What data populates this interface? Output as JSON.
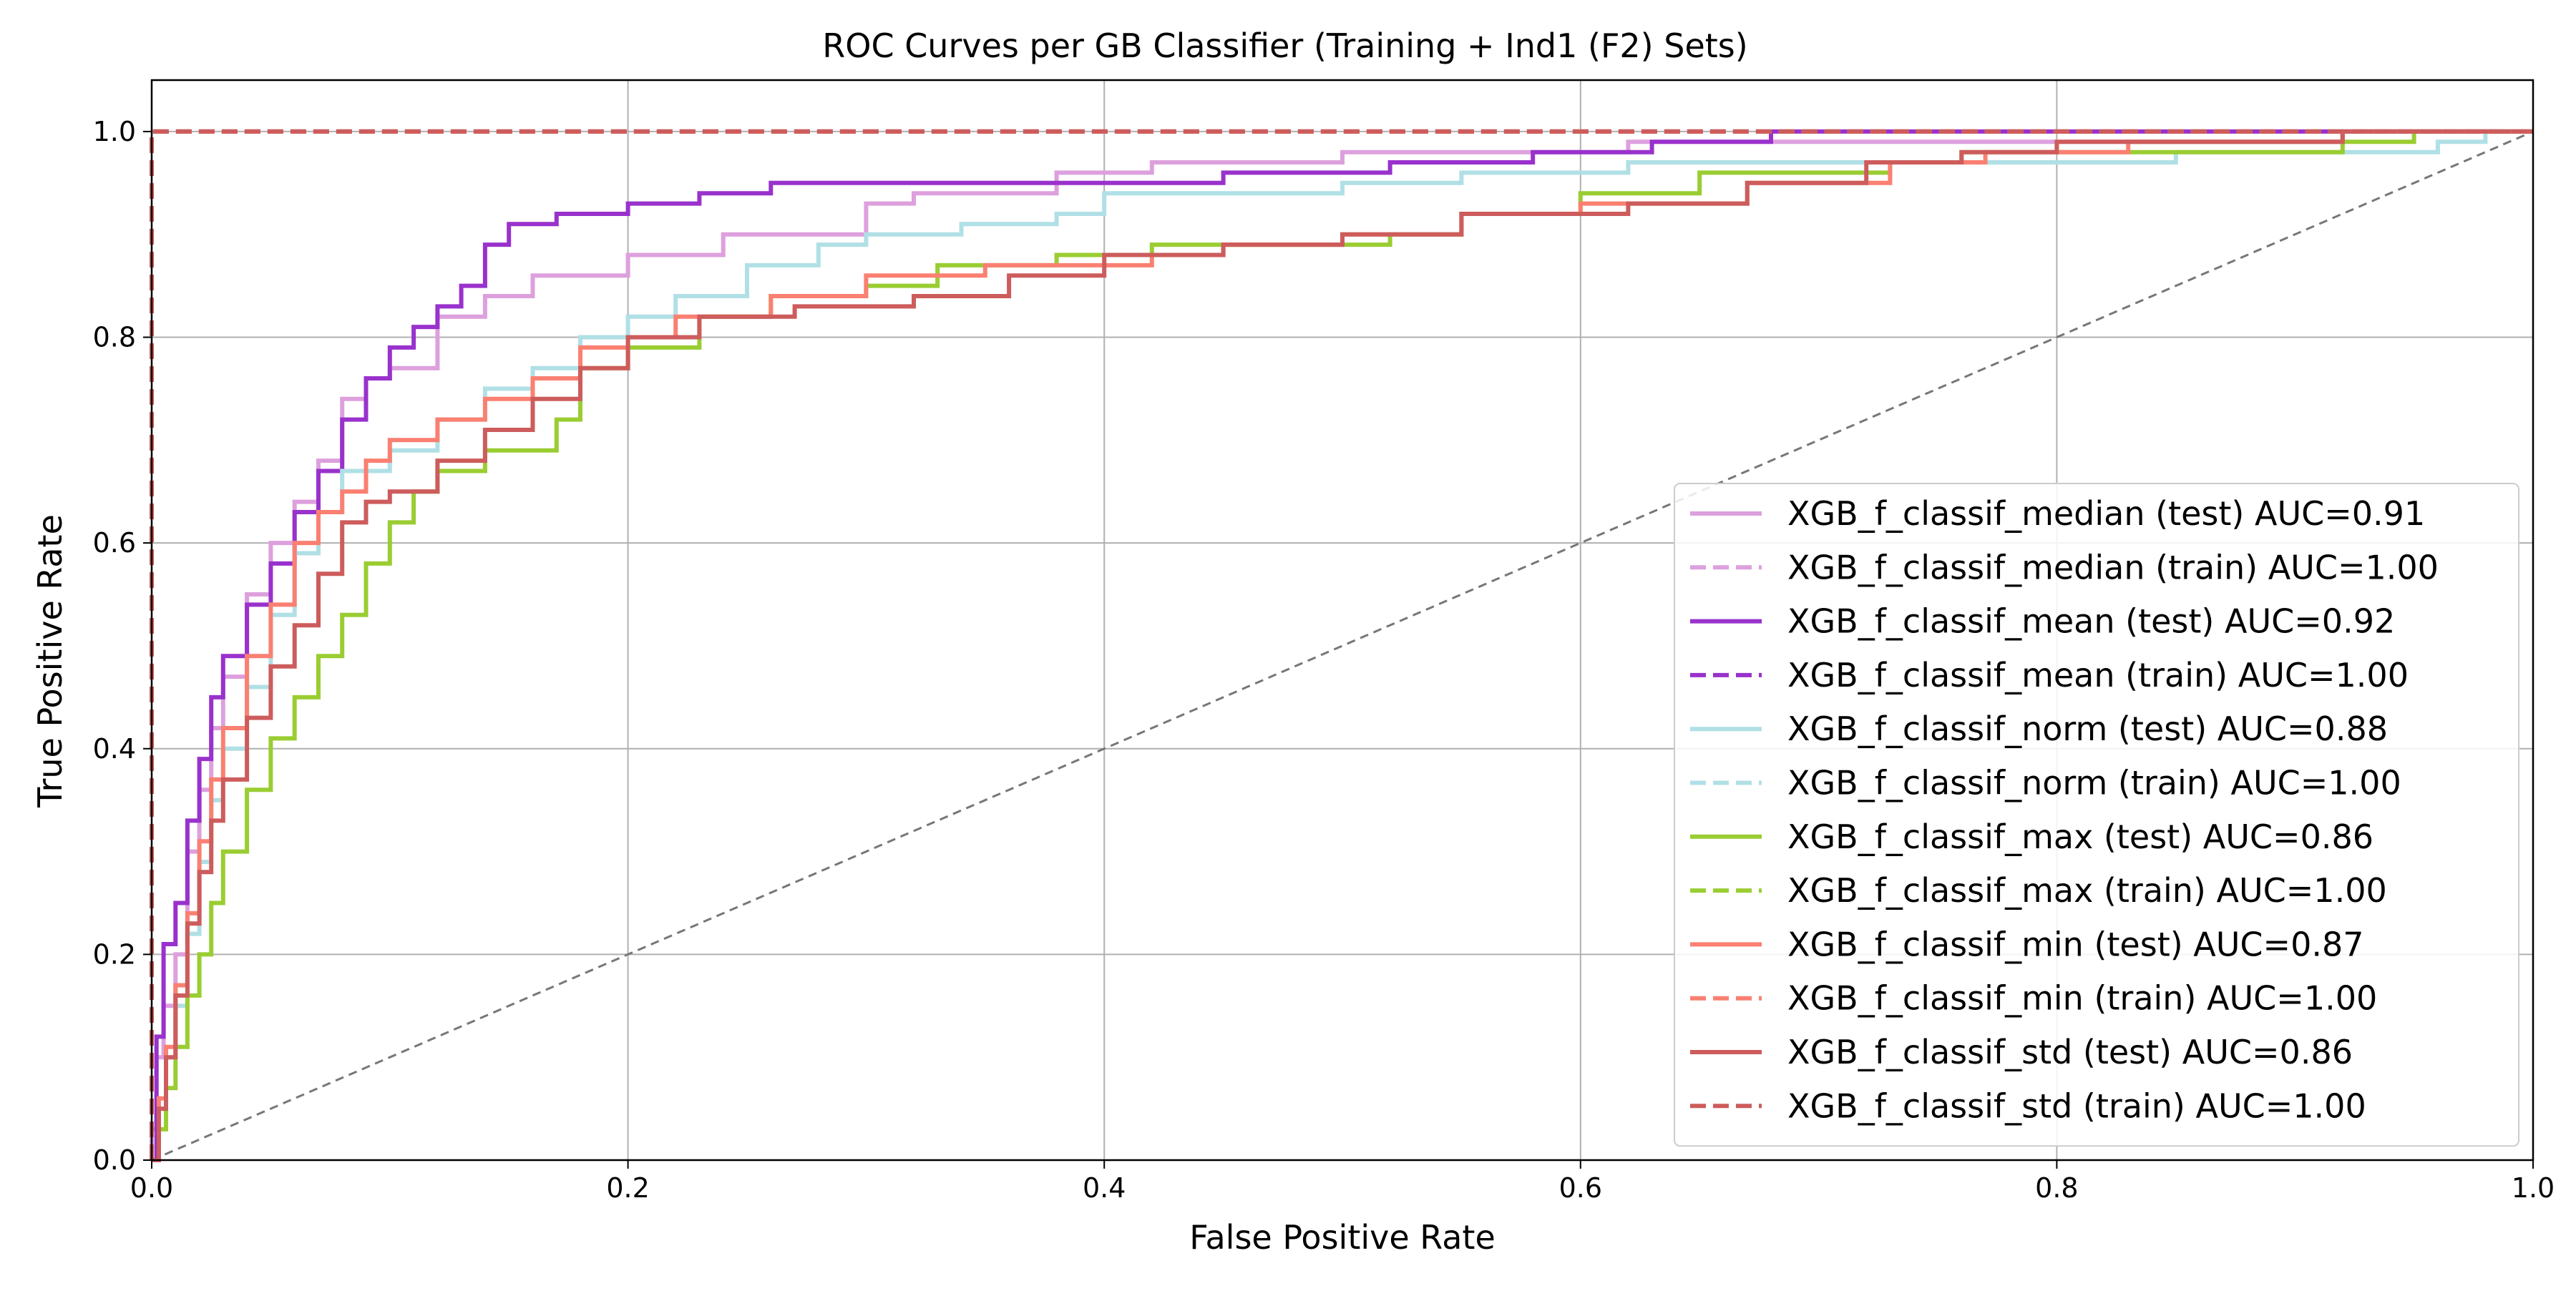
{
  "chart_data": {
    "type": "line",
    "title": "ROC Curves per GB Classifier (Training + Ind1 (F2) Sets)",
    "xlabel": "False Positive Rate",
    "ylabel": "True Positive Rate",
    "xlim": [
      0.0,
      1.0
    ],
    "ylim": [
      0.0,
      1.05
    ],
    "xticks": [
      0.0,
      0.2,
      0.4,
      0.6,
      0.8,
      1.0
    ],
    "yticks": [
      0.0,
      0.2,
      0.4,
      0.6,
      0.8,
      1.0
    ],
    "xtick_labels": [
      "0.0",
      "0.2",
      "0.4",
      "0.6",
      "0.8",
      "1.0"
    ],
    "ytick_labels": [
      "0.0",
      "0.2",
      "0.4",
      "0.6",
      "0.8",
      "1.0"
    ],
    "grid": true,
    "legend_position": "center-right",
    "series": [
      {
        "name": "XGB_f_classif_median (test) AUC=0.91",
        "color": "#dda0dd",
        "style": "solid",
        "points": [
          [
            0,
            0
          ],
          [
            0,
            0.03
          ],
          [
            0.002,
            0.1
          ],
          [
            0.005,
            0.15
          ],
          [
            0.01,
            0.2
          ],
          [
            0.015,
            0.3
          ],
          [
            0.02,
            0.36
          ],
          [
            0.025,
            0.42
          ],
          [
            0.03,
            0.47
          ],
          [
            0.04,
            0.55
          ],
          [
            0.05,
            0.6
          ],
          [
            0.06,
            0.64
          ],
          [
            0.07,
            0.68
          ],
          [
            0.08,
            0.74
          ],
          [
            0.09,
            0.76
          ],
          [
            0.1,
            0.77
          ],
          [
            0.12,
            0.82
          ],
          [
            0.14,
            0.84
          ],
          [
            0.16,
            0.86
          ],
          [
            0.2,
            0.88
          ],
          [
            0.24,
            0.9
          ],
          [
            0.3,
            0.93
          ],
          [
            0.32,
            0.94
          ],
          [
            0.38,
            0.96
          ],
          [
            0.42,
            0.97
          ],
          [
            0.5,
            0.98
          ],
          [
            0.62,
            0.99
          ],
          [
            0.75,
            0.99
          ],
          [
            0.92,
            1.0
          ],
          [
            1.0,
            1.0
          ]
        ]
      },
      {
        "name": "XGB_f_classif_median (train) AUC=1.00",
        "color": "#dda0dd",
        "style": "dashed",
        "points": [
          [
            0,
            0
          ],
          [
            0,
            1.0
          ],
          [
            1.0,
            1.0
          ]
        ]
      },
      {
        "name": "XGB_f_classif_mean (test) AUC=0.92",
        "color": "#9932cc",
        "style": "solid",
        "points": [
          [
            0,
            0
          ],
          [
            0.002,
            0.12
          ],
          [
            0.005,
            0.21
          ],
          [
            0.01,
            0.25
          ],
          [
            0.015,
            0.33
          ],
          [
            0.02,
            0.39
          ],
          [
            0.025,
            0.45
          ],
          [
            0.03,
            0.49
          ],
          [
            0.04,
            0.54
          ],
          [
            0.05,
            0.58
          ],
          [
            0.06,
            0.63
          ],
          [
            0.07,
            0.67
          ],
          [
            0.08,
            0.72
          ],
          [
            0.09,
            0.76
          ],
          [
            0.1,
            0.79
          ],
          [
            0.11,
            0.81
          ],
          [
            0.12,
            0.83
          ],
          [
            0.13,
            0.85
          ],
          [
            0.14,
            0.89
          ],
          [
            0.15,
            0.91
          ],
          [
            0.17,
            0.92
          ],
          [
            0.2,
            0.93
          ],
          [
            0.23,
            0.94
          ],
          [
            0.26,
            0.95
          ],
          [
            0.4,
            0.95
          ],
          [
            0.45,
            0.96
          ],
          [
            0.52,
            0.97
          ],
          [
            0.58,
            0.98
          ],
          [
            0.63,
            0.99
          ],
          [
            0.68,
            1.0
          ],
          [
            1.0,
            1.0
          ]
        ]
      },
      {
        "name": "XGB_f_classif_mean (train) AUC=1.00",
        "color": "#9932cc",
        "style": "dashed",
        "points": [
          [
            0,
            0
          ],
          [
            0,
            1.0
          ],
          [
            1.0,
            1.0
          ]
        ]
      },
      {
        "name": "XGB_f_classif_norm (test) AUC=0.88",
        "color": "#b0e0e6",
        "style": "solid",
        "points": [
          [
            0,
            0
          ],
          [
            0.003,
            0.05
          ],
          [
            0.006,
            0.1
          ],
          [
            0.01,
            0.15
          ],
          [
            0.015,
            0.22
          ],
          [
            0.02,
            0.29
          ],
          [
            0.025,
            0.35
          ],
          [
            0.03,
            0.4
          ],
          [
            0.04,
            0.46
          ],
          [
            0.05,
            0.53
          ],
          [
            0.06,
            0.59
          ],
          [
            0.07,
            0.63
          ],
          [
            0.08,
            0.67
          ],
          [
            0.1,
            0.69
          ],
          [
            0.12,
            0.72
          ],
          [
            0.14,
            0.75
          ],
          [
            0.16,
            0.77
          ],
          [
            0.18,
            0.8
          ],
          [
            0.2,
            0.82
          ],
          [
            0.22,
            0.84
          ],
          [
            0.25,
            0.87
          ],
          [
            0.28,
            0.89
          ],
          [
            0.3,
            0.9
          ],
          [
            0.34,
            0.91
          ],
          [
            0.38,
            0.92
          ],
          [
            0.4,
            0.94
          ],
          [
            0.5,
            0.95
          ],
          [
            0.55,
            0.96
          ],
          [
            0.62,
            0.97
          ],
          [
            0.85,
            0.98
          ],
          [
            0.96,
            0.99
          ],
          [
            0.98,
            1.0
          ],
          [
            1.0,
            1.0
          ]
        ]
      },
      {
        "name": "XGB_f_classif_norm (train) AUC=1.00",
        "color": "#b0e0e6",
        "style": "dashed",
        "points": [
          [
            0,
            0
          ],
          [
            0,
            1.0
          ],
          [
            1.0,
            1.0
          ]
        ]
      },
      {
        "name": "XGB_f_classif_max (test) AUC=0.86",
        "color": "#9acd32",
        "style": "solid",
        "points": [
          [
            0,
            0
          ],
          [
            0.003,
            0.03
          ],
          [
            0.006,
            0.07
          ],
          [
            0.01,
            0.11
          ],
          [
            0.015,
            0.16
          ],
          [
            0.02,
            0.2
          ],
          [
            0.025,
            0.25
          ],
          [
            0.03,
            0.3
          ],
          [
            0.04,
            0.36
          ],
          [
            0.05,
            0.41
          ],
          [
            0.06,
            0.45
          ],
          [
            0.07,
            0.49
          ],
          [
            0.08,
            0.53
          ],
          [
            0.09,
            0.58
          ],
          [
            0.1,
            0.62
          ],
          [
            0.11,
            0.65
          ],
          [
            0.12,
            0.67
          ],
          [
            0.14,
            0.69
          ],
          [
            0.17,
            0.72
          ],
          [
            0.18,
            0.77
          ],
          [
            0.2,
            0.79
          ],
          [
            0.23,
            0.82
          ],
          [
            0.26,
            0.84
          ],
          [
            0.3,
            0.85
          ],
          [
            0.33,
            0.87
          ],
          [
            0.38,
            0.88
          ],
          [
            0.42,
            0.89
          ],
          [
            0.52,
            0.9
          ],
          [
            0.55,
            0.92
          ],
          [
            0.6,
            0.94
          ],
          [
            0.65,
            0.96
          ],
          [
            0.73,
            0.97
          ],
          [
            0.76,
            0.98
          ],
          [
            0.92,
            0.99
          ],
          [
            0.95,
            1.0
          ],
          [
            1.0,
            1.0
          ]
        ]
      },
      {
        "name": "XGB_f_classif_max (train) AUC=1.00",
        "color": "#9acd32",
        "style": "dashed",
        "points": [
          [
            0,
            0
          ],
          [
            0,
            1.0
          ],
          [
            1.0,
            1.0
          ]
        ]
      },
      {
        "name": "XGB_f_classif_min (test) AUC=0.87",
        "color": "#fa8072",
        "style": "solid",
        "points": [
          [
            0,
            0
          ],
          [
            0.003,
            0.06
          ],
          [
            0.006,
            0.11
          ],
          [
            0.01,
            0.17
          ],
          [
            0.015,
            0.24
          ],
          [
            0.02,
            0.31
          ],
          [
            0.025,
            0.37
          ],
          [
            0.03,
            0.42
          ],
          [
            0.04,
            0.49
          ],
          [
            0.05,
            0.54
          ],
          [
            0.06,
            0.6
          ],
          [
            0.07,
            0.63
          ],
          [
            0.08,
            0.65
          ],
          [
            0.09,
            0.68
          ],
          [
            0.1,
            0.7
          ],
          [
            0.12,
            0.72
          ],
          [
            0.14,
            0.74
          ],
          [
            0.16,
            0.76
          ],
          [
            0.18,
            0.79
          ],
          [
            0.2,
            0.8
          ],
          [
            0.22,
            0.82
          ],
          [
            0.26,
            0.84
          ],
          [
            0.3,
            0.86
          ],
          [
            0.35,
            0.87
          ],
          [
            0.42,
            0.88
          ],
          [
            0.45,
            0.89
          ],
          [
            0.5,
            0.9
          ],
          [
            0.55,
            0.92
          ],
          [
            0.6,
            0.93
          ],
          [
            0.67,
            0.95
          ],
          [
            0.73,
            0.97
          ],
          [
            0.77,
            0.98
          ],
          [
            0.83,
            0.99
          ],
          [
            0.92,
            1.0
          ],
          [
            1.0,
            1.0
          ]
        ]
      },
      {
        "name": "XGB_f_classif_min (train) AUC=1.00",
        "color": "#fa8072",
        "style": "dashed",
        "points": [
          [
            0,
            0
          ],
          [
            0,
            1.0
          ],
          [
            1.0,
            1.0
          ]
        ]
      },
      {
        "name": "XGB_f_classif_std (test) AUC=0.86",
        "color": "#cd5c5c",
        "style": "solid",
        "points": [
          [
            0,
            0
          ],
          [
            0.003,
            0.05
          ],
          [
            0.006,
            0.1
          ],
          [
            0.01,
            0.16
          ],
          [
            0.015,
            0.23
          ],
          [
            0.02,
            0.28
          ],
          [
            0.025,
            0.33
          ],
          [
            0.03,
            0.37
          ],
          [
            0.04,
            0.43
          ],
          [
            0.05,
            0.48
          ],
          [
            0.06,
            0.52
          ],
          [
            0.07,
            0.57
          ],
          [
            0.08,
            0.62
          ],
          [
            0.09,
            0.64
          ],
          [
            0.1,
            0.65
          ],
          [
            0.12,
            0.68
          ],
          [
            0.14,
            0.71
          ],
          [
            0.16,
            0.74
          ],
          [
            0.18,
            0.77
          ],
          [
            0.2,
            0.8
          ],
          [
            0.23,
            0.82
          ],
          [
            0.27,
            0.83
          ],
          [
            0.32,
            0.84
          ],
          [
            0.36,
            0.86
          ],
          [
            0.4,
            0.88
          ],
          [
            0.45,
            0.89
          ],
          [
            0.5,
            0.9
          ],
          [
            0.55,
            0.92
          ],
          [
            0.62,
            0.93
          ],
          [
            0.67,
            0.95
          ],
          [
            0.72,
            0.97
          ],
          [
            0.76,
            0.98
          ],
          [
            0.8,
            0.99
          ],
          [
            0.92,
            1.0
          ],
          [
            1.0,
            1.0
          ]
        ]
      },
      {
        "name": "XGB_f_classif_std (train) AUC=1.00",
        "color": "#cd5c5c",
        "style": "dashed",
        "points": [
          [
            0,
            0
          ],
          [
            0,
            1.0
          ],
          [
            1.0,
            1.0
          ]
        ]
      }
    ],
    "reference_line": {
      "points": [
        [
          0,
          0
        ],
        [
          1.0,
          1.0
        ]
      ],
      "color": "#777777",
      "style": "dashed"
    }
  }
}
